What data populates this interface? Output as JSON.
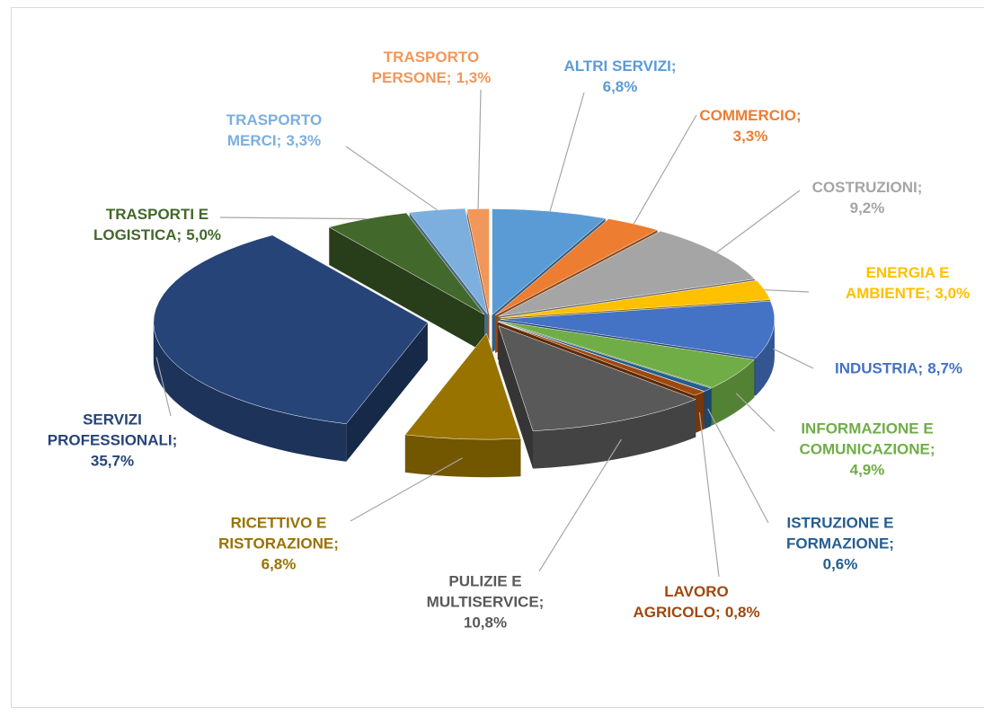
{
  "chart_data": {
    "type": "pie3d",
    "categories": [
      "ALTRI SERVIZI;",
      "COMMERCIO;",
      "COSTRUZIONI;",
      "ENERGIA E AMBIENTE;",
      "INDUSTRIA;",
      "INFORMAZIONE E COMUNICAZIONE;",
      "ISTRUZIONE E FORMAZIONE;",
      "LAVORO AGRICOLO;",
      "PULIZIE E MULTISERVICE;",
      "RICETTIVO E RISTORAZIONE;",
      "SERVIZI PROFESSIONALI;",
      "TRASPORTI E LOGISTICA;",
      "TRASPORTO MERCI;",
      "TRASPORTO PERSONE;"
    ],
    "values": [
      6.8,
      3.3,
      9.2,
      3.0,
      8.7,
      4.9,
      0.6,
      0.8,
      10.8,
      6.8,
      35.7,
      5.0,
      3.3,
      1.3
    ],
    "value_labels": [
      "6,8%",
      "3,3%",
      "9,2%",
      "3,0%",
      "8,7%",
      "4,9%",
      "0,6%",
      "0,8%",
      "10,8%",
      "6,8%",
      "35,7%",
      "5,0%",
      "3,3%",
      "1,3%"
    ],
    "colors": [
      "#5b9bd5",
      "#ed7d31",
      "#a5a5a5",
      "#ffc000",
      "#4472c4",
      "#70ad47",
      "#255e91",
      "#9e480e",
      "#595959",
      "#997300",
      "#264478",
      "#43682b",
      "#7cafdd",
      "#f1975a"
    ]
  }
}
